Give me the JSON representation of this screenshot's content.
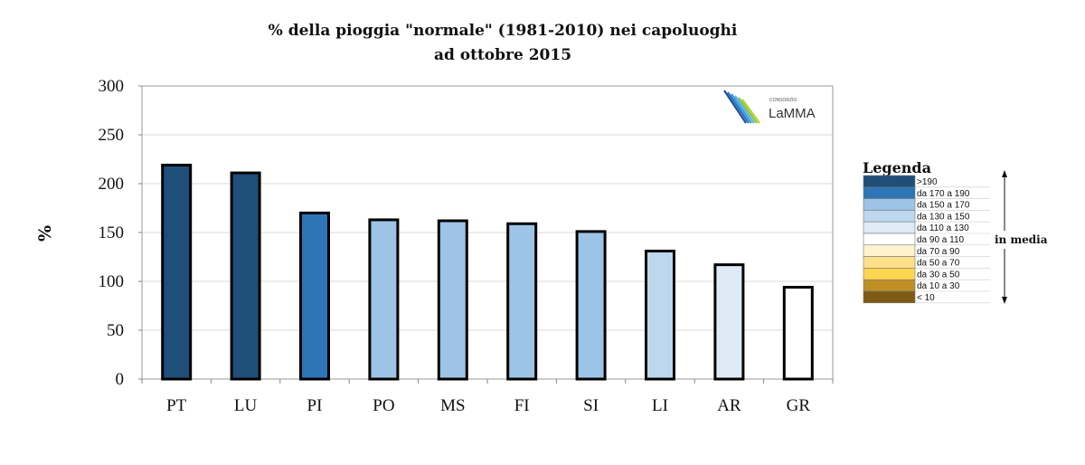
{
  "chart_data": {
    "type": "bar",
    "title": "% della pioggia \"normale\" (1981-2010) nei capoluoghi",
    "subtitle": "ad ottobre 2015",
    "xlabel": "",
    "ylabel": "%",
    "ylim": [
      0,
      300
    ],
    "yticks": [
      0,
      50,
      100,
      150,
      200,
      250,
      300
    ],
    "grid": true,
    "categories": [
      "PT",
      "LU",
      "PI",
      "PO",
      "MS",
      "FI",
      "SI",
      "LI",
      "AR",
      "GR"
    ],
    "values": [
      219,
      211,
      170,
      163,
      162,
      159,
      151,
      131,
      117,
      94
    ],
    "bar_colors": [
      "#1f4e79",
      "#1f4e79",
      "#2e75b6",
      "#9dc3e6",
      "#9dc3e6",
      "#9dc3e6",
      "#9dc3e6",
      "#bdd7ee",
      "#deebf7",
      "#ffffff"
    ],
    "legend": {
      "title": "Legenda",
      "placement": "right",
      "entries": [
        {
          "label": ">190",
          "color": "#1f4e79"
        },
        {
          "label": "da 170 a 190",
          "color": "#2e75b6"
        },
        {
          "label": "da 150 a 170",
          "color": "#9dc3e6"
        },
        {
          "label": "da 130 a 150",
          "color": "#bdd7ee"
        },
        {
          "label": "da 110 a 130",
          "color": "#deebf7"
        },
        {
          "label": "da 90 a 110",
          "color": "#ffffff"
        },
        {
          "label": "da 70 a 90",
          "color": "#fff2cc"
        },
        {
          "label": "da 50 a 70",
          "color": "#ffe08a"
        },
        {
          "label": "da 30 a 50",
          "color": "#ffd54f"
        },
        {
          "label": "da 10 a 30",
          "color": "#bf8f26"
        },
        {
          "label": "< 10",
          "color": "#7f5a14"
        }
      ],
      "annotation": "in media"
    },
    "logo": {
      "line1": "CONSORZIO",
      "line2": "LaMMA"
    }
  }
}
